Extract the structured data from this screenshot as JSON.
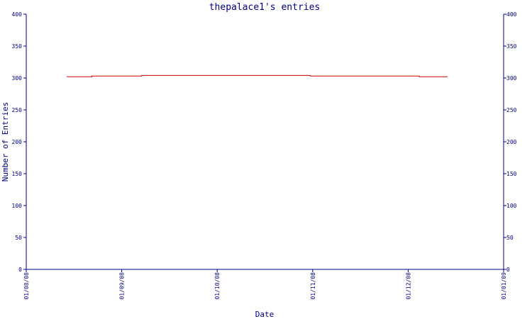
{
  "chart_data": {
    "type": "line",
    "title": "thepalace1's entries",
    "xlabel": "Date",
    "ylabel": "Number of Entries",
    "x_ticks": [
      "01/08/08",
      "01/09/08",
      "01/10/08",
      "01/11/08",
      "01/12/08",
      "01/01/09"
    ],
    "y_ticks": [
      0,
      50,
      100,
      150,
      200,
      250,
      300,
      350,
      400
    ],
    "ylim": [
      0,
      400
    ],
    "xlim": [
      "2008-08-01",
      "2009-01-01"
    ],
    "grid": false,
    "colors": {
      "axis": "#000080",
      "line": "#cc0000"
    },
    "series": [
      {
        "x": [
          "2008-08-14",
          "2008-08-22",
          "2008-09-07",
          "2008-10-04",
          "2008-10-31",
          "2008-11-28",
          "2008-12-05",
          "2008-12-14"
        ],
        "values": [
          302,
          303,
          304,
          304,
          303,
          303,
          302,
          302
        ]
      }
    ]
  }
}
